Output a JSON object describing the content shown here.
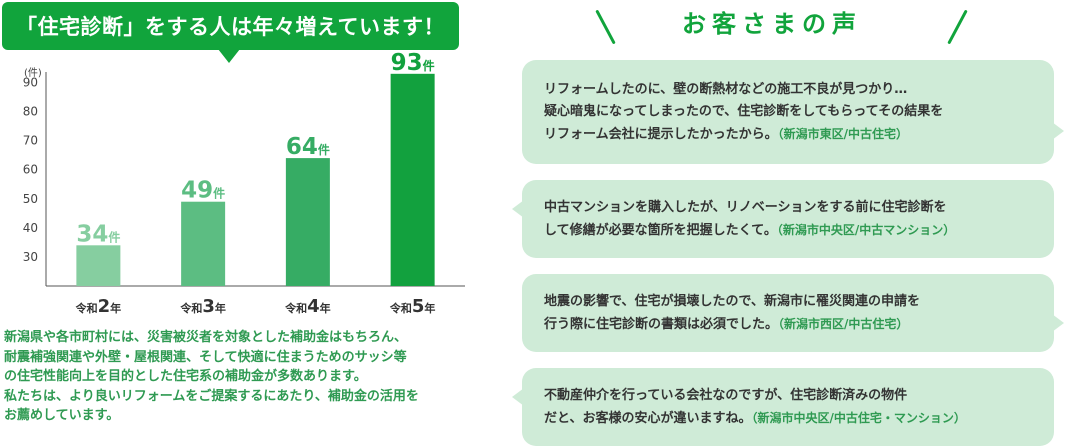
{
  "banner": {
    "text": "「住宅診断」をする人は年々増えています！"
  },
  "chart_data": {
    "type": "bar",
    "unit_label": "(件)",
    "categories": [
      {
        "prefix": "令和",
        "num": "2",
        "suffix": "年"
      },
      {
        "prefix": "令和",
        "num": "3",
        "suffix": "年"
      },
      {
        "prefix": "令和",
        "num": "4",
        "suffix": "年"
      },
      {
        "prefix": "令和",
        "num": "5",
        "suffix": "年"
      }
    ],
    "values": [
      34,
      49,
      64,
      93
    ],
    "value_suffix": "件",
    "yticks": [
      30,
      40,
      50,
      60,
      70,
      80,
      90
    ],
    "ylim": [
      20,
      95
    ],
    "grid": false,
    "colors": {
      "bars": [
        "#86cea0",
        "#5cbd82",
        "#36ac64",
        "#12a13e"
      ],
      "labels": [
        "#86cea0",
        "#5cbd82",
        "#36ac64",
        "#12a13e"
      ]
    }
  },
  "description": {
    "lines": [
      "新潟県や各市町村には、災害被災者を対象とした補助金はもちろん、",
      "耐震補強関連や外壁・屋根関連、そして快適に住まうためのサッシ等",
      "の住宅性能向上を目的とした住宅系の補助金が多数あります。",
      "私たちは、より良いリフォームをご提案するにあたり、補助金の活用を",
      "お薦めしています。"
    ]
  },
  "voices": {
    "title": "お客さまの声",
    "items": [
      {
        "lines": [
          "リフォームしたのに、壁の断熱材などの施工不良が見つかり…",
          "疑心暗鬼になってしまったので、住宅診断をしてもらってその結果を",
          "リフォーム会社に提示したかったから。"
        ],
        "where": "（新潟市東区/中古住宅）"
      },
      {
        "lines": [
          "中古マンションを購入したが、リノベーションをする前に住宅診断を",
          "して修繕が必要な箇所を把握したくて。"
        ],
        "where": "（新潟市中央区/中古マンション）"
      },
      {
        "lines": [
          "地震の影響で、住宅が損壊したので、新潟市に罹災関連の申請を",
          "行う際に住宅診断の書類は必須でした。"
        ],
        "where": "（新潟市西区/中古住宅）"
      },
      {
        "lines": [
          "不動産仲介を行っている会社なのですが、住宅診断済みの物件",
          "だと、お客様の安心が違いますね。"
        ],
        "where": "（新潟市中央区/中古住宅・マンション）"
      }
    ]
  }
}
